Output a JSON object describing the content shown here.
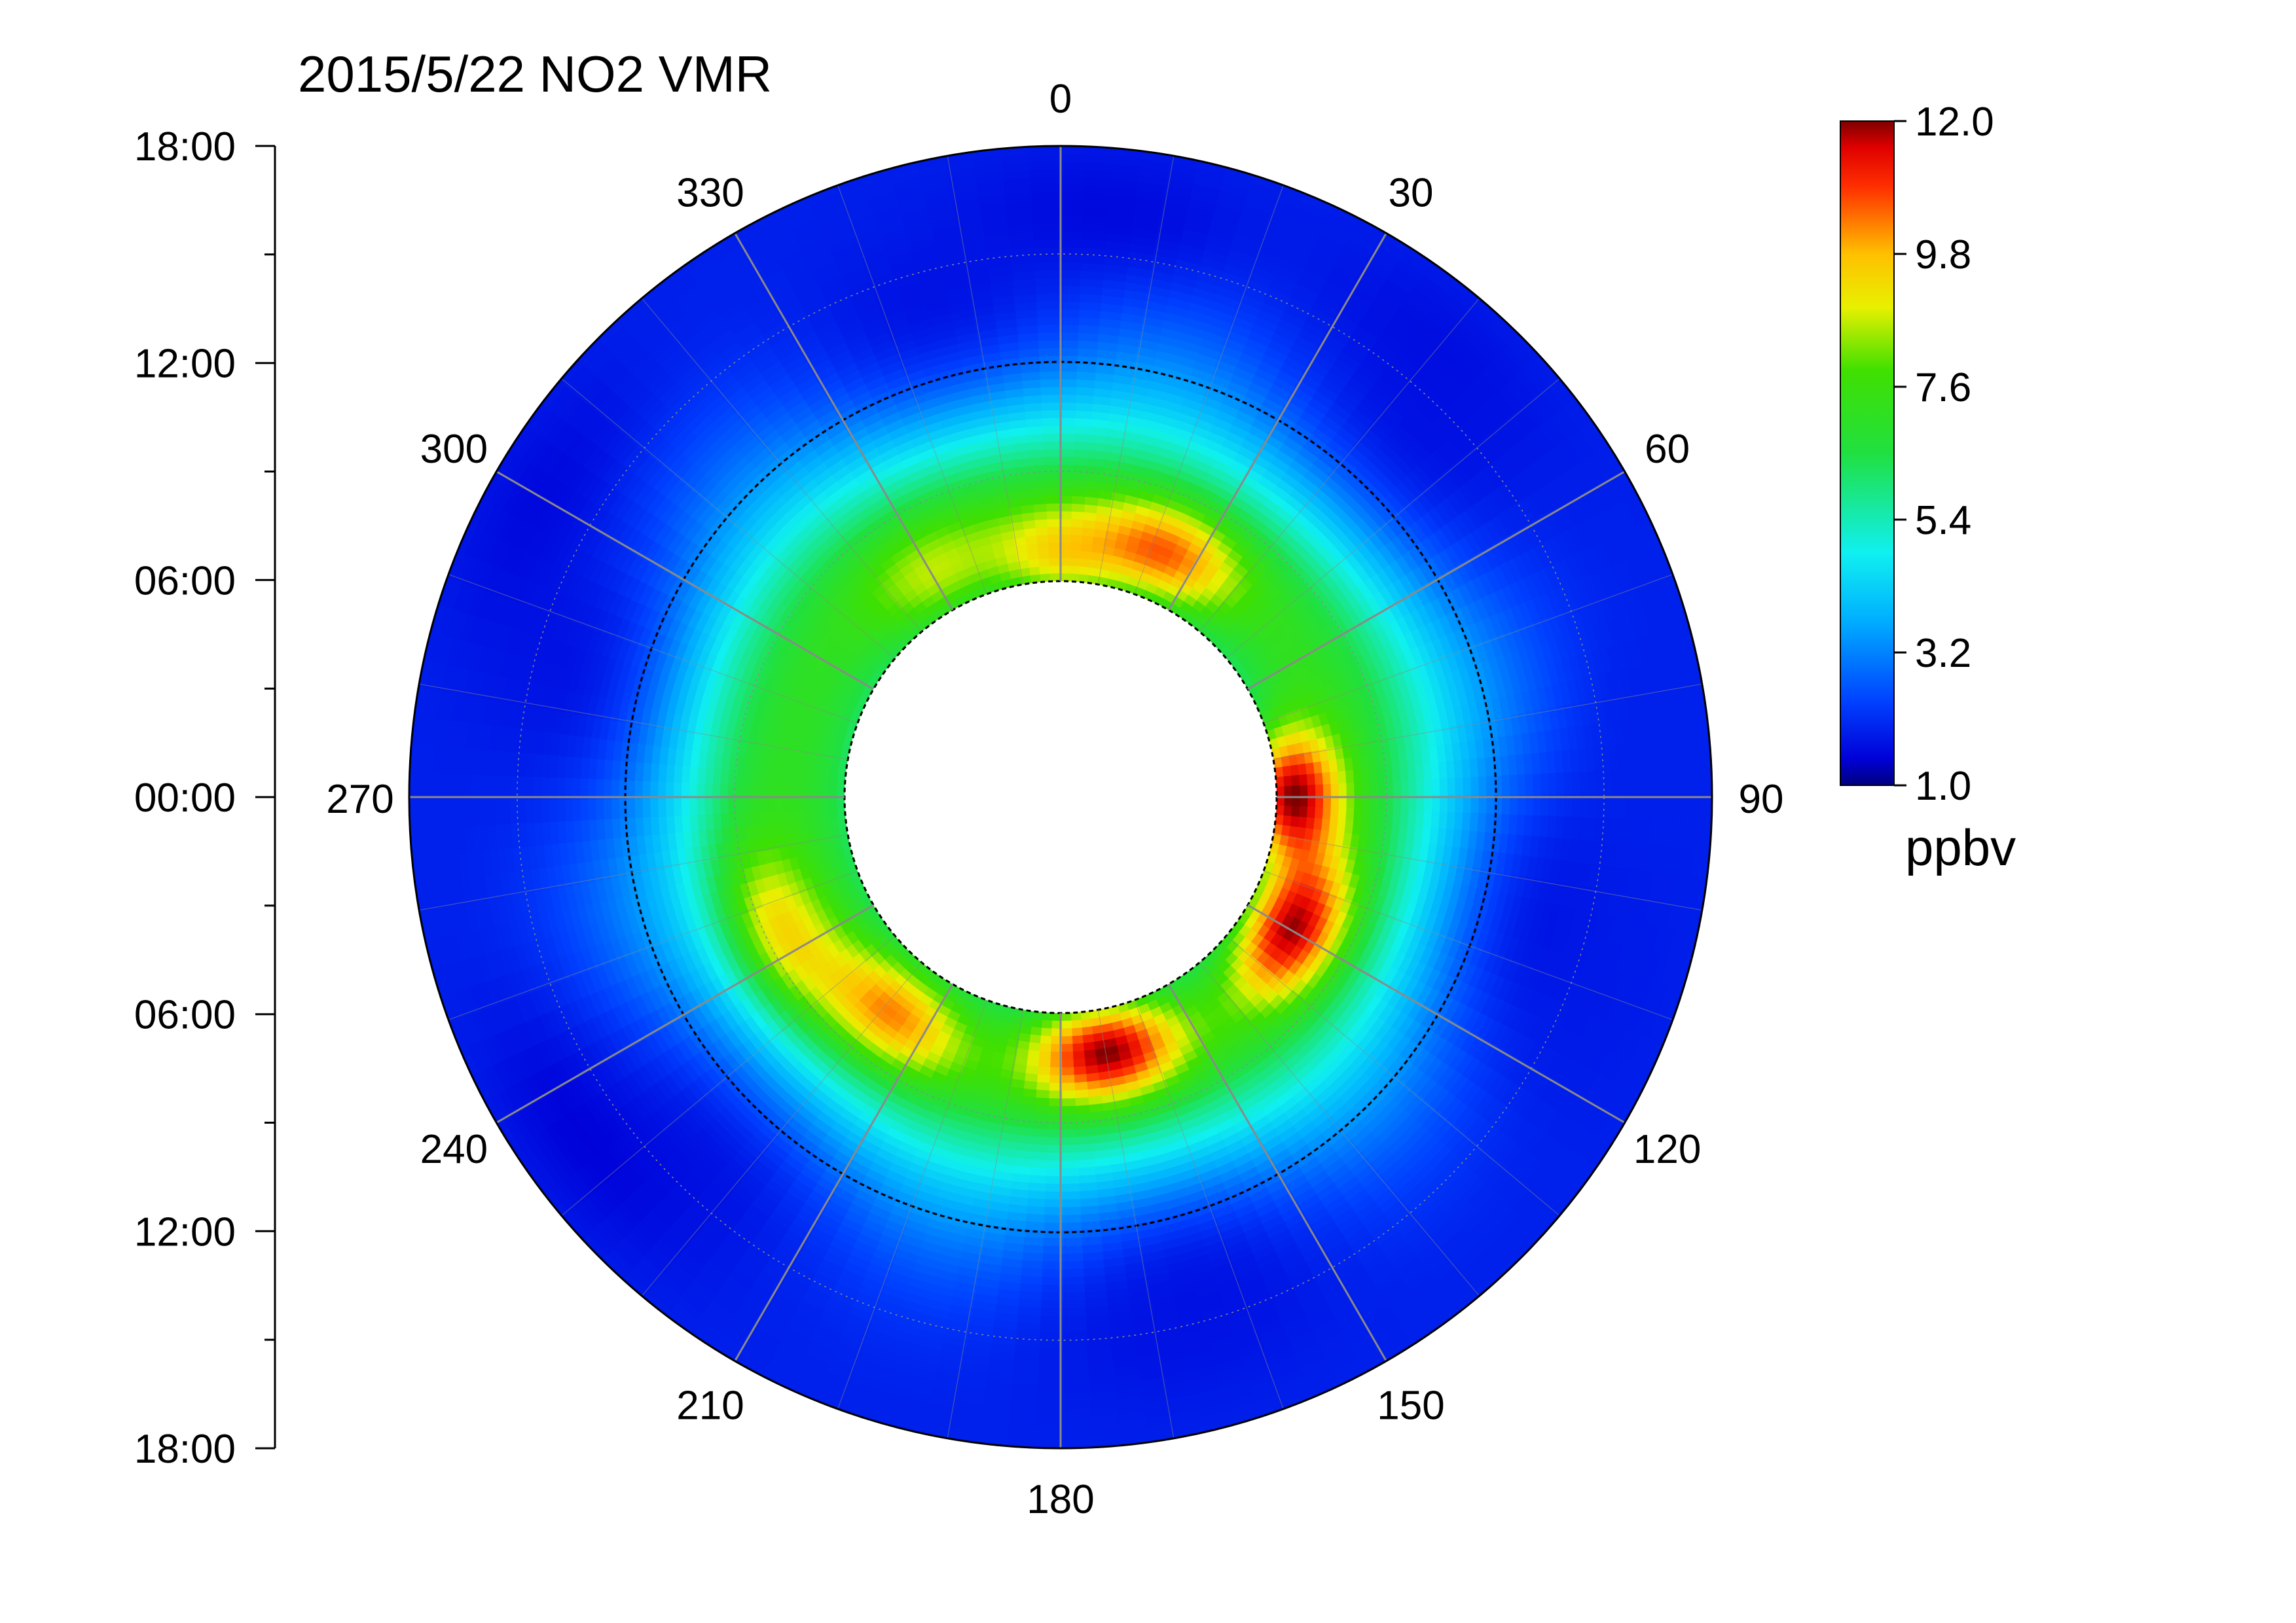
{
  "chart_data": {
    "type": "heatmap",
    "subtype": "polar-contour",
    "title": "2015/5/22  NO2 VMR",
    "angular_axis": {
      "ticks": [
        "0",
        "30",
        "60",
        "90",
        "120",
        "150",
        "180",
        "210",
        "240",
        "270",
        "300",
        "330"
      ],
      "direction": "clockwise",
      "zero_at": "top"
    },
    "radial_axis": {
      "tick_labels": [
        "18:00",
        "12:00",
        "06:00",
        "00:00",
        "06:00",
        "12:00",
        "18:00"
      ],
      "inner_hole": "blank",
      "reference_rings": "dashed"
    },
    "colorbar": {
      "ticks": [
        "12.0",
        "9.8",
        "7.6",
        "5.4",
        "3.2",
        "1.0"
      ],
      "min": 1.0,
      "max": 12.0,
      "unit": "ppbv",
      "colormap": "jet",
      "placement": "right"
    },
    "field": {
      "description_levels": "ring of high values near the inner edge, low values toward outer edge",
      "hotspots": [
        {
          "angle_deg": 0,
          "radius_frac": 0.38,
          "value": 9.3
        },
        {
          "angle_deg": 24,
          "radius_frac": 0.41,
          "value": 10.4
        },
        {
          "angle_deg": 90,
          "radius_frac": 0.36,
          "value": 12.0
        },
        {
          "angle_deg": 120,
          "radius_frac": 0.41,
          "value": 11.8
        },
        {
          "angle_deg": 170,
          "radius_frac": 0.4,
          "value": 12.0
        },
        {
          "angle_deg": 218,
          "radius_frac": 0.42,
          "value": 10.2
        },
        {
          "angle_deg": 245,
          "radius_frac": 0.47,
          "value": 9.3
        },
        {
          "angle_deg": 330,
          "radius_frac": 0.4,
          "value": 8.6
        }
      ],
      "lowspots": [
        {
          "angle_deg": 300,
          "radius_frac": 0.92,
          "value": 1.5
        },
        {
          "angle_deg": 235,
          "radius_frac": 0.9,
          "value": 1.4
        },
        {
          "angle_deg": 168,
          "radius_frac": 0.85,
          "value": 1.7
        },
        {
          "angle_deg": 110,
          "radius_frac": 0.88,
          "value": 1.8
        },
        {
          "angle_deg": 85,
          "radius_frac": 0.9,
          "value": 1.9
        },
        {
          "angle_deg": 40,
          "radius_frac": 0.9,
          "value": 1.6
        },
        {
          "angle_deg": 5,
          "radius_frac": 0.9,
          "value": 1.5
        }
      ]
    }
  }
}
